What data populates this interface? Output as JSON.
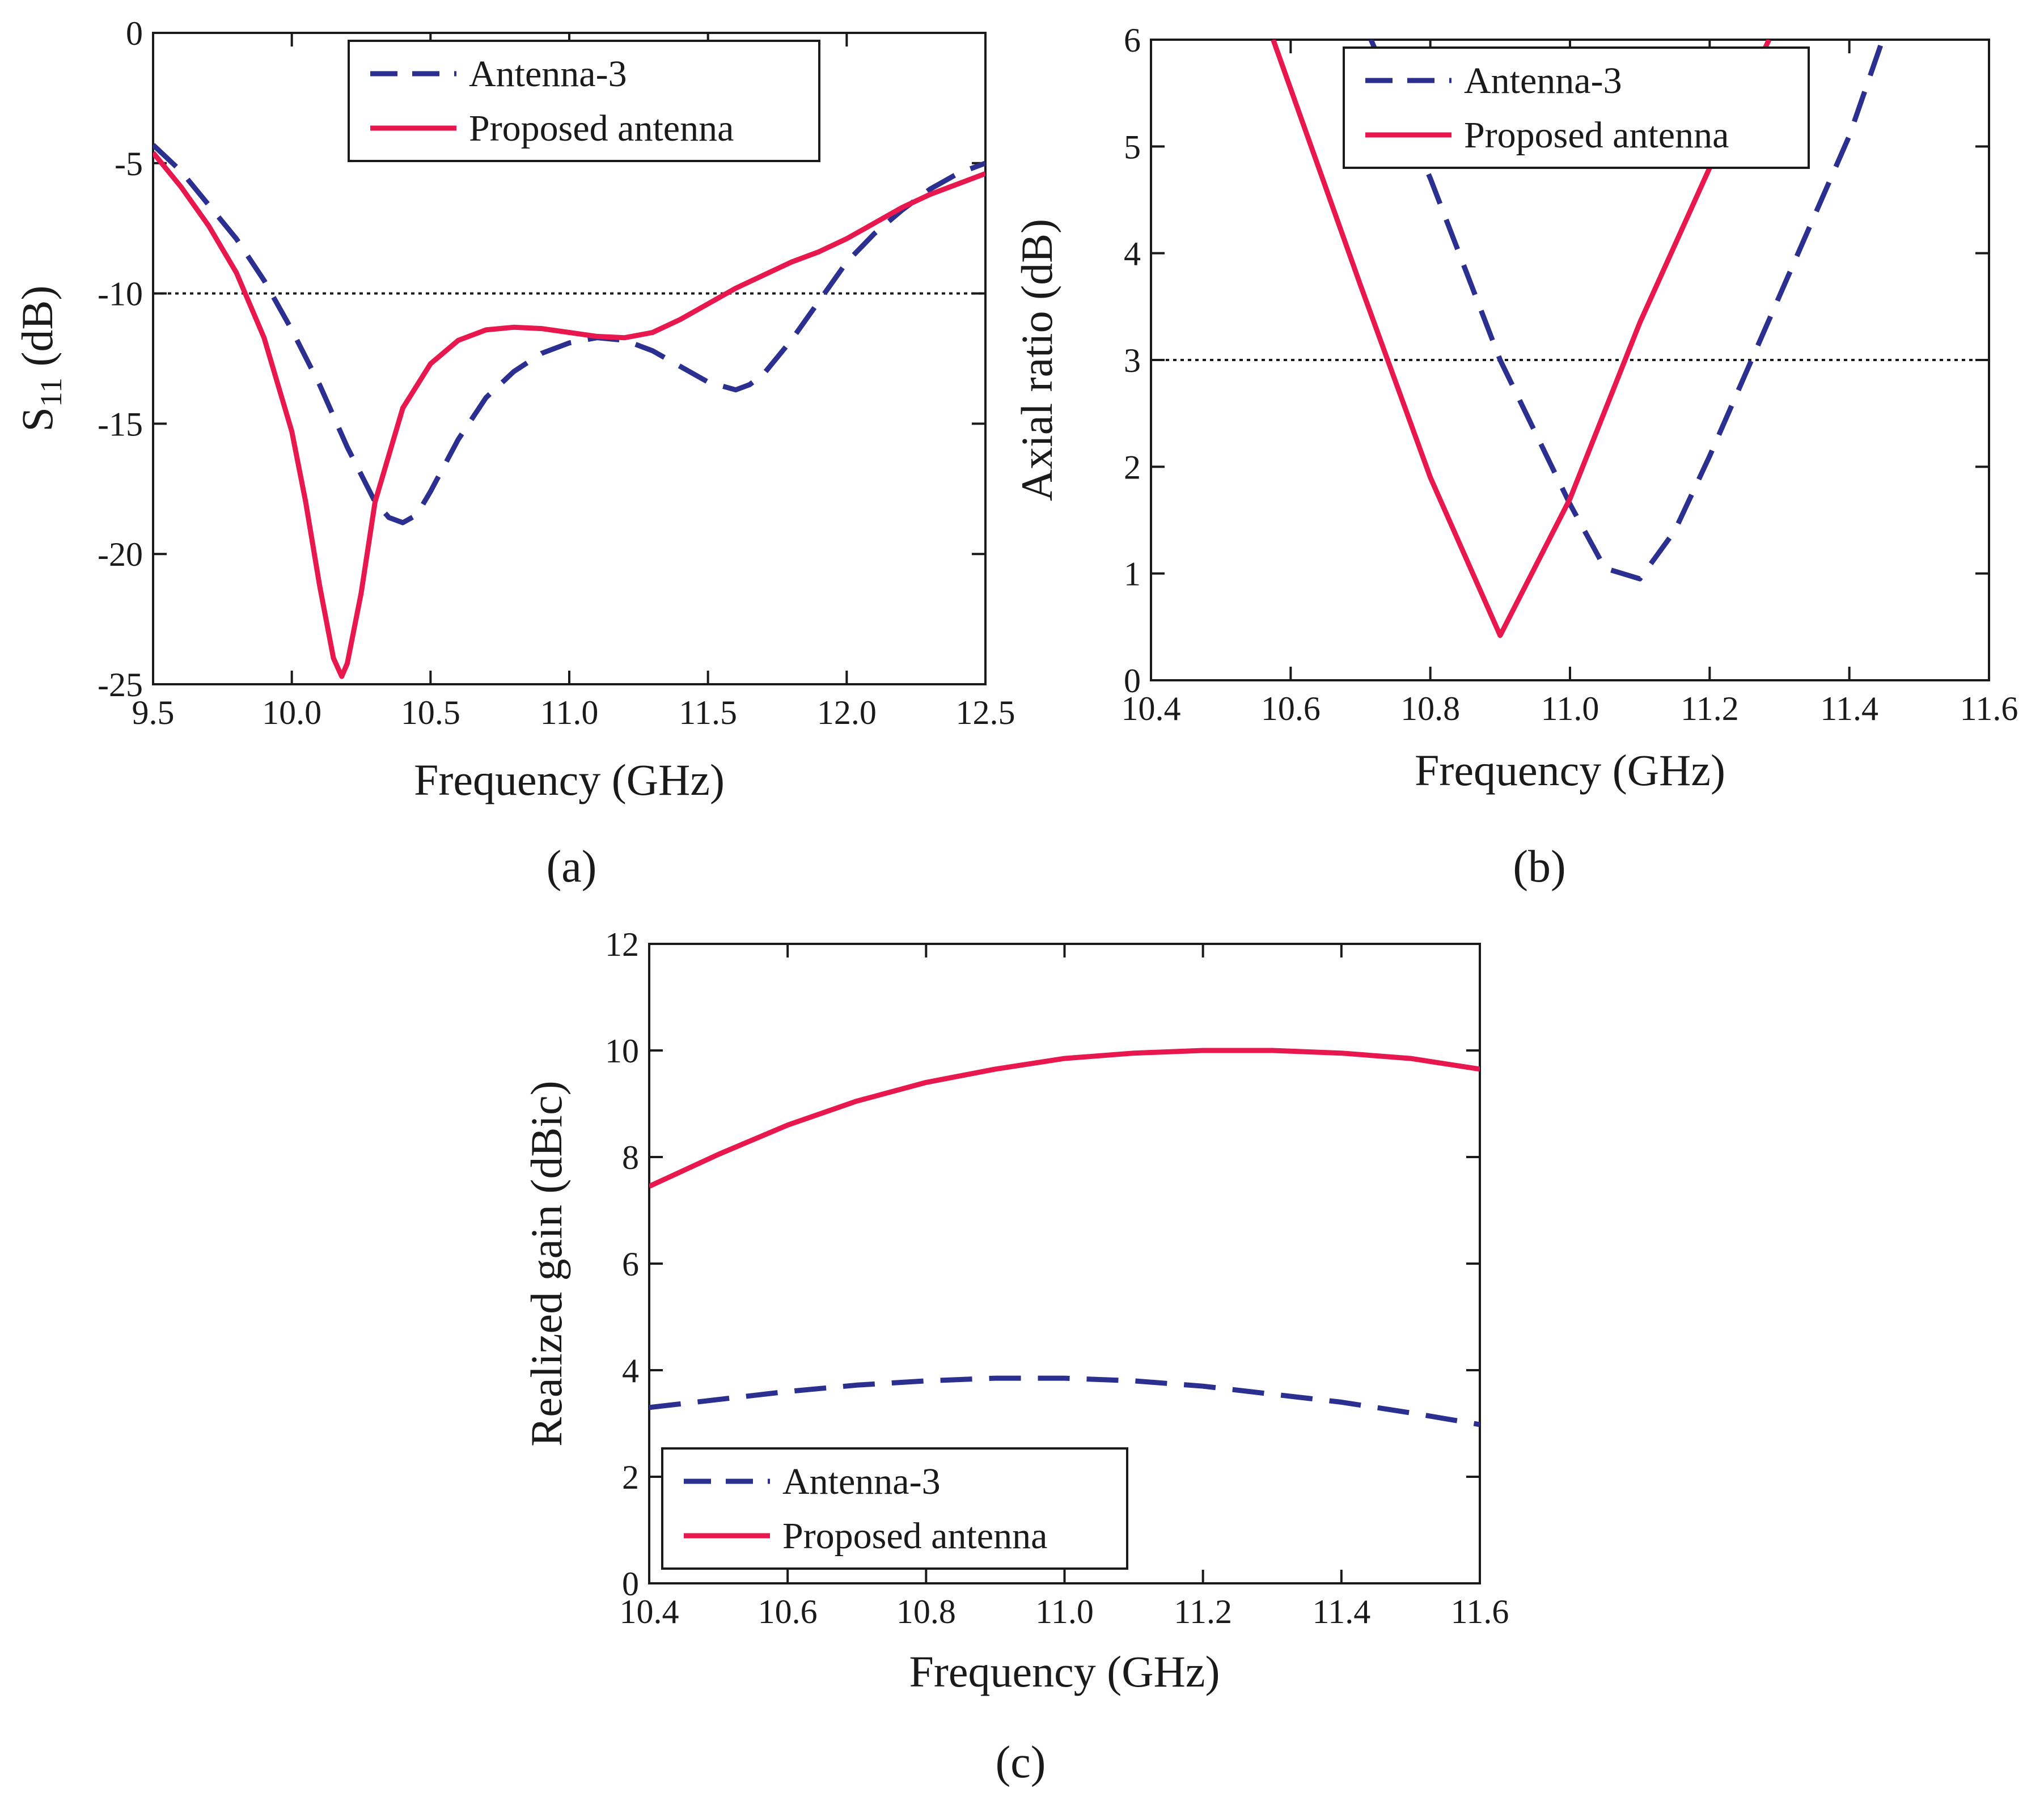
{
  "colors": {
    "antenna3": "#2b2f8f",
    "proposed": "#e8174e",
    "reference": "#1a1a1a"
  },
  "chart_data": [
    {
      "id": "a",
      "type": "line",
      "caption": "(a)",
      "title": "",
      "xlabel": "Frequency (GHz)",
      "ylabel_main": "S",
      "ylabel_sub": "11",
      "ylabel_rest": " (dB)",
      "xlim": [
        9.5,
        12.5
      ],
      "ylim": [
        -25,
        0
      ],
      "xticks": [
        9.5,
        10.0,
        10.5,
        11.0,
        11.5,
        12.0,
        12.5
      ],
      "xtick_labels": [
        "9.5",
        "10.0",
        "10.5",
        "11.0",
        "11.5",
        "12.0",
        "12.5"
      ],
      "yticks": [
        0,
        -5,
        -10,
        -15,
        -20,
        -25
      ],
      "ytick_labels": [
        "0",
        "-5",
        "-10",
        "-15",
        "-20",
        "-25"
      ],
      "reference_line": -10,
      "legend": {
        "position": "top-center",
        "entries": [
          "Antenna-3",
          "Proposed antenna"
        ]
      },
      "series": [
        {
          "name": "Antenna-3",
          "style": "dashed",
          "x": [
            9.5,
            9.6,
            9.7,
            9.8,
            9.9,
            10.0,
            10.1,
            10.2,
            10.3,
            10.35,
            10.4,
            10.45,
            10.5,
            10.6,
            10.7,
            10.8,
            10.9,
            11.0,
            11.1,
            11.2,
            11.3,
            11.4,
            11.5,
            11.6,
            11.65,
            11.7,
            11.8,
            11.9,
            12.0,
            12.1,
            12.2,
            12.3,
            12.4,
            12.5
          ],
          "y": [
            -4.3,
            -5.3,
            -6.6,
            -7.9,
            -9.5,
            -11.4,
            -13.5,
            -15.9,
            -18.0,
            -18.6,
            -18.8,
            -18.5,
            -17.6,
            -15.6,
            -14.0,
            -13.0,
            -12.3,
            -11.9,
            -11.7,
            -11.8,
            -12.2,
            -12.8,
            -13.4,
            -13.7,
            -13.5,
            -13.1,
            -11.8,
            -10.3,
            -8.8,
            -7.7,
            -6.8,
            -6.0,
            -5.4,
            -5.0
          ]
        },
        {
          "name": "Proposed antenna",
          "style": "solid",
          "x": [
            9.5,
            9.6,
            9.7,
            9.8,
            9.9,
            10.0,
            10.05,
            10.1,
            10.15,
            10.18,
            10.2,
            10.25,
            10.3,
            10.4,
            10.5,
            10.6,
            10.7,
            10.8,
            10.9,
            11.0,
            11.1,
            11.2,
            11.3,
            11.4,
            11.5,
            11.6,
            11.7,
            11.8,
            11.9,
            12.0,
            12.1,
            12.2,
            12.3,
            12.4,
            12.5
          ],
          "y": [
            -4.6,
            -5.9,
            -7.4,
            -9.2,
            -11.7,
            -15.3,
            -18.0,
            -21.2,
            -24.0,
            -24.7,
            -24.2,
            -21.5,
            -18.0,
            -14.4,
            -12.7,
            -11.8,
            -11.4,
            -11.3,
            -11.35,
            -11.5,
            -11.65,
            -11.7,
            -11.5,
            -11.0,
            -10.4,
            -9.8,
            -9.3,
            -8.8,
            -8.4,
            -7.9,
            -7.3,
            -6.7,
            -6.2,
            -5.8,
            -5.4
          ]
        }
      ]
    },
    {
      "id": "b",
      "type": "line",
      "caption": "(b)",
      "title": "",
      "xlabel": "Frequency (GHz)",
      "ylabel": "Axial ratio (dB)",
      "xlim": [
        10.4,
        11.6
      ],
      "ylim": [
        0,
        6
      ],
      "xticks": [
        10.4,
        10.6,
        10.8,
        11.0,
        11.2,
        11.4,
        11.6
      ],
      "xtick_labels": [
        "10.4",
        "10.6",
        "10.8",
        "11.0",
        "11.2",
        "11.4",
        "11.6"
      ],
      "yticks": [
        0,
        1,
        2,
        3,
        4,
        5,
        6
      ],
      "ytick_labels": [
        "0",
        "1",
        "2",
        "3",
        "4",
        "5",
        "6"
      ],
      "reference_line": 3,
      "legend": {
        "position": "top-center",
        "entries": [
          "Antenna-3",
          "Proposed antenna"
        ]
      },
      "series": [
        {
          "name": "Antenna-3",
          "style": "dashed",
          "x": [
            10.715,
            10.8,
            10.9,
            11.0,
            11.05,
            11.1,
            11.15,
            11.2,
            11.3,
            11.4,
            11.445
          ],
          "y": [
            6.0,
            4.7,
            3.0,
            1.65,
            1.05,
            0.95,
            1.4,
            2.1,
            3.6,
            5.1,
            5.95
          ]
        },
        {
          "name": "Proposed antenna",
          "style": "solid",
          "x": [
            10.575,
            10.7,
            10.8,
            10.9,
            11.0,
            11.1,
            11.2,
            11.285
          ],
          "y": [
            6.0,
            3.7,
            1.9,
            0.42,
            1.7,
            3.35,
            4.8,
            6.0
          ]
        }
      ]
    },
    {
      "id": "c",
      "type": "line",
      "caption": "(c)",
      "title": "",
      "xlabel": "Frequency (GHz)",
      "ylabel": "Realized gain (dBic)",
      "xlim": [
        10.4,
        11.6
      ],
      "ylim": [
        0,
        12
      ],
      "xticks": [
        10.4,
        10.6,
        10.8,
        11.0,
        11.2,
        11.4,
        11.6
      ],
      "xtick_labels": [
        "10.4",
        "10.6",
        "10.8",
        "11.0",
        "11.2",
        "11.4",
        "11.6"
      ],
      "yticks": [
        0,
        2,
        4,
        6,
        8,
        10,
        12
      ],
      "ytick_labels": [
        "0",
        "2",
        "4",
        "6",
        "8",
        "10",
        "12"
      ],
      "legend": {
        "position": "bottom-left",
        "entries": [
          "Antenna-3",
          "Proposed antenna"
        ]
      },
      "series": [
        {
          "name": "Antenna-3",
          "style": "dashed",
          "x": [
            10.4,
            10.5,
            10.6,
            10.7,
            10.8,
            10.9,
            11.0,
            11.1,
            11.2,
            11.3,
            11.4,
            11.5,
            11.6
          ],
          "y": [
            3.3,
            3.45,
            3.6,
            3.72,
            3.8,
            3.85,
            3.85,
            3.8,
            3.7,
            3.55,
            3.4,
            3.2,
            2.98
          ]
        },
        {
          "name": "Proposed antenna",
          "style": "solid",
          "x": [
            10.4,
            10.5,
            10.6,
            10.7,
            10.8,
            10.9,
            11.0,
            11.1,
            11.2,
            11.3,
            11.4,
            11.5,
            11.6
          ],
          "y": [
            7.45,
            8.05,
            8.6,
            9.05,
            9.4,
            9.65,
            9.85,
            9.95,
            10.0,
            10.0,
            9.95,
            9.85,
            9.65
          ]
        }
      ]
    }
  ]
}
